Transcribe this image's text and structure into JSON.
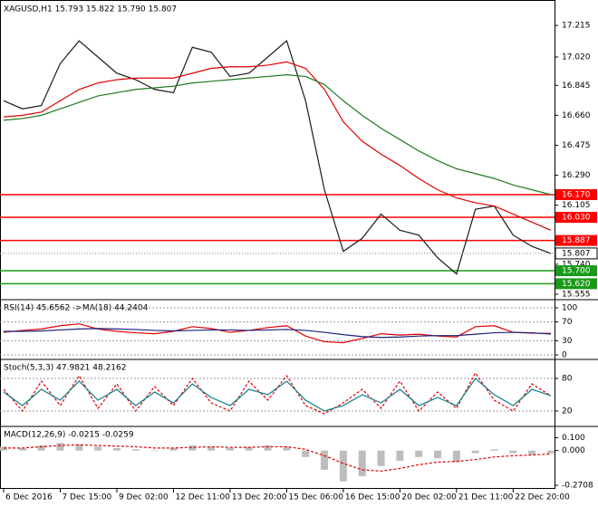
{
  "chart_data": [
    {
      "type": "price",
      "title": "XAGUSD,H1  15.793 15.822 15.790 15.807",
      "categories": [
        "6 Dec 2016",
        null,
        null,
        "7 Dec 15:00",
        null,
        null,
        "9 Dec 02:00",
        null,
        null,
        "12 Dec 11:00",
        null,
        null,
        "13 Dec 20:00",
        null,
        null,
        "15 Dec 06:00",
        null,
        null,
        "16 Dec 15:00",
        null,
        null,
        "20 Dec 02:00",
        null,
        null,
        "21 Dec 11:00",
        null,
        null,
        "22 Dec 20:00",
        null,
        null
      ],
      "ylim": [
        15.527,
        17.361
      ],
      "yticks": [
        {
          "value": 17.215,
          "label": "17.215"
        },
        {
          "value": 17.02,
          "label": "17.020"
        },
        {
          "value": 16.845,
          "label": "16.845"
        },
        {
          "value": 16.66,
          "label": "16.660"
        },
        {
          "value": 16.475,
          "label": "16.475"
        },
        {
          "value": 16.29,
          "label": "16.290"
        },
        {
          "value": 16.105,
          "label": "16.105"
        },
        {
          "value": 15.74,
          "label": "15.740"
        },
        {
          "value": 15.555,
          "label": "15.555"
        }
      ],
      "series": [
        {
          "color": "#1a1a1a",
          "values": [
            16.75,
            16.7,
            16.72,
            16.98,
            17.12,
            17.02,
            16.92,
            16.88,
            16.82,
            16.8,
            17.08,
            17.05,
            16.9,
            16.92,
            17.02,
            17.12,
            16.75,
            16.2,
            15.82,
            15.9,
            16.05,
            15.95,
            15.92,
            15.78,
            15.68,
            16.08,
            16.1,
            15.92,
            15.85,
            15.807
          ]
        },
        {
          "color": "#e00000",
          "values": [
            16.65,
            16.66,
            16.68,
            16.75,
            16.82,
            16.86,
            16.88,
            16.89,
            16.89,
            16.89,
            16.92,
            16.95,
            16.96,
            16.96,
            16.97,
            16.99,
            16.95,
            16.82,
            16.62,
            16.5,
            16.42,
            16.35,
            16.27,
            16.2,
            16.15,
            16.12,
            16.1,
            16.05,
            16.0,
            15.95
          ]
        },
        {
          "color": "#1f7a1f",
          "values": [
            16.63,
            16.64,
            16.66,
            16.7,
            16.74,
            16.78,
            16.8,
            16.82,
            16.83,
            16.84,
            16.86,
            16.87,
            16.88,
            16.89,
            16.9,
            16.91,
            16.9,
            16.85,
            16.75,
            16.66,
            16.58,
            16.51,
            16.44,
            16.38,
            16.33,
            16.3,
            16.27,
            16.23,
            16.2,
            16.17
          ]
        }
      ],
      "levels": [
        {
          "value": 16.17,
          "label": "16.170",
          "color": "#ff0000"
        },
        {
          "value": 16.03,
          "label": "16.030",
          "color": "#ff0000"
        },
        {
          "value": 15.887,
          "label": "15.887",
          "color": "#ff0000"
        },
        {
          "value": 15.7,
          "label": "15.700",
          "color": "#1a9a1a"
        },
        {
          "value": 15.62,
          "label": "15.620",
          "color": "#1a9a1a"
        }
      ],
      "last_price": 15.807
    },
    {
      "type": "indicator",
      "title": "RSI(14) 45.6562  ->MA(18) 44.2404",
      "ylim": [
        0,
        100
      ],
      "yticks": [
        100,
        70,
        30,
        0
      ],
      "grid": true,
      "series": [
        {
          "color": "#e00000",
          "values": [
            48,
            52,
            55,
            62,
            66,
            55,
            50,
            47,
            45,
            50,
            60,
            56,
            48,
            52,
            58,
            62,
            40,
            28,
            26,
            35,
            45,
            42,
            44,
            40,
            38,
            60,
            62,
            48,
            46,
            45.6562
          ]
        },
        {
          "color": "#1a237e",
          "values": [
            50,
            50,
            51,
            53,
            55,
            56,
            55,
            54,
            52,
            51,
            52,
            53,
            53,
            52,
            53,
            54,
            52,
            48,
            43,
            39,
            37,
            38,
            40,
            41,
            41,
            44,
            47,
            48,
            47,
            44.2404
          ]
        }
      ]
    },
    {
      "type": "indicator",
      "title": "Stoch(5,3,3) 47.9821 48.2162",
      "ylim": [
        0,
        100
      ],
      "yticks": [
        80,
        20
      ],
      "grid": true,
      "dashed": true,
      "series": [
        {
          "color": "#e00000",
          "values": [
            60,
            20,
            75,
            30,
            85,
            25,
            70,
            20,
            65,
            30,
            80,
            35,
            20,
            75,
            40,
            85,
            30,
            15,
            35,
            60,
            25,
            75,
            20,
            55,
            25,
            90,
            40,
            20,
            70,
            47.9821
          ]
        },
        {
          "color": "#0e7c86",
          "values": [
            55,
            30,
            60,
            40,
            75,
            40,
            60,
            30,
            55,
            35,
            70,
            45,
            30,
            60,
            50,
            75,
            40,
            20,
            30,
            50,
            35,
            60,
            30,
            45,
            30,
            80,
            50,
            30,
            60,
            48.2162
          ]
        }
      ]
    },
    {
      "type": "macd",
      "title": "MACD(12,26,9) -0.0215 -0.0259",
      "ylim": [
        -0.2708,
        0.125
      ],
      "yticks": [
        {
          "value": 0.1,
          "label": "0.100"
        },
        {
          "value": 0,
          "label": "0.000"
        },
        {
          "value": -0.2708,
          "label": "-0.2708"
        }
      ],
      "values": [
        0.03,
        0.02,
        0.04,
        0.06,
        0.05,
        0.03,
        0.02,
        0.01,
        0.0,
        0.02,
        0.04,
        0.03,
        0.02,
        0.03,
        0.04,
        0.03,
        -0.05,
        -0.15,
        -0.24,
        -0.2,
        -0.12,
        -0.08,
        -0.05,
        -0.06,
        -0.09,
        -0.02,
        0.01,
        -0.02,
        -0.03,
        -0.0215
      ],
      "signal": {
        "color": "#e00000",
        "values": [
          0.02,
          0.02,
          0.03,
          0.04,
          0.045,
          0.04,
          0.035,
          0.03,
          0.02,
          0.02,
          0.025,
          0.03,
          0.025,
          0.025,
          0.03,
          0.03,
          0.01,
          -0.04,
          -0.1,
          -0.15,
          -0.16,
          -0.14,
          -0.11,
          -0.09,
          -0.085,
          -0.07,
          -0.05,
          -0.04,
          -0.035,
          -0.0259
        ]
      }
    }
  ]
}
